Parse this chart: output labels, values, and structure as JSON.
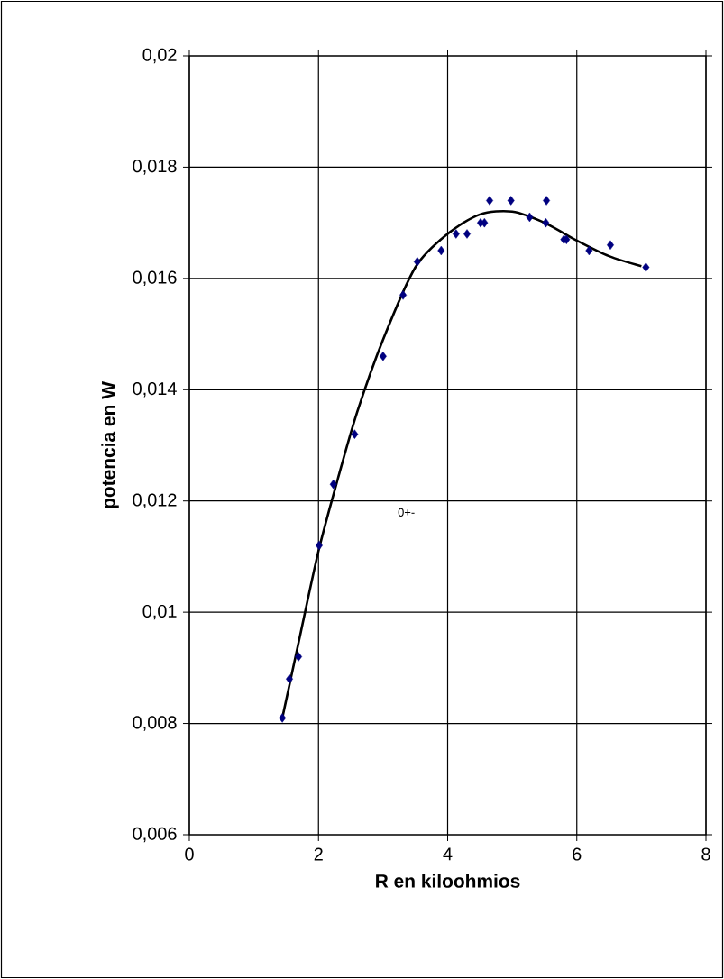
{
  "chart_data": {
    "type": "scatter",
    "xlabel": "R en kiloohmios",
    "ylabel": "potencia en W",
    "xlim": [
      0,
      8
    ],
    "xticks": [
      0,
      2,
      4,
      6,
      8
    ],
    "ylim": [
      0.006,
      0.02
    ],
    "yticks": [
      {
        "value": 0.006,
        "label": "0,006"
      },
      {
        "value": 0.008,
        "label": "0,008"
      },
      {
        "value": 0.01,
        "label": "0,01"
      },
      {
        "value": 0.012,
        "label": "0,012"
      },
      {
        "value": 0.014,
        "label": "0,014"
      },
      {
        "value": 0.016,
        "label": "0,016"
      },
      {
        "value": 0.018,
        "label": "0,018"
      },
      {
        "value": 0.02,
        "label": "0,02"
      }
    ],
    "grid": true,
    "marker": "diamond",
    "annotations": [
      "0+-"
    ],
    "series": [
      {
        "color": "#000080",
        "x": [
          1.44,
          1.55,
          1.69,
          2.01,
          2.23,
          2.56,
          3.0,
          3.31,
          3.53,
          3.9,
          4.13,
          4.3,
          4.51,
          4.57,
          4.65,
          4.98,
          5.27,
          5.52,
          5.53,
          5.8,
          5.84,
          6.19,
          6.52,
          7.07
        ],
        "values": [
          0.0081,
          0.0088,
          0.0092,
          0.0112,
          0.0123,
          0.0132,
          0.0146,
          0.0157,
          0.0163,
          0.0165,
          0.0168,
          0.0168,
          0.017,
          0.017,
          0.0174,
          0.0174,
          0.0171,
          0.017,
          0.0174,
          0.0167,
          0.0167,
          0.0165,
          0.0166,
          0.0162
        ]
      },
      {
        "type": "line",
        "color": "#000000",
        "marker": "none",
        "x": [
          1.44,
          1.7,
          2.0,
          2.3,
          2.6,
          3.0,
          3.5,
          4.0,
          4.5,
          5.0,
          5.5,
          6.0,
          6.5,
          7.0
        ],
        "values": [
          0.0081,
          0.0095,
          0.0111,
          0.0124,
          0.0136,
          0.0149,
          0.0162,
          0.0168,
          0.01715,
          0.0172,
          0.017,
          0.01668,
          0.0164,
          0.01622
        ]
      }
    ]
  }
}
